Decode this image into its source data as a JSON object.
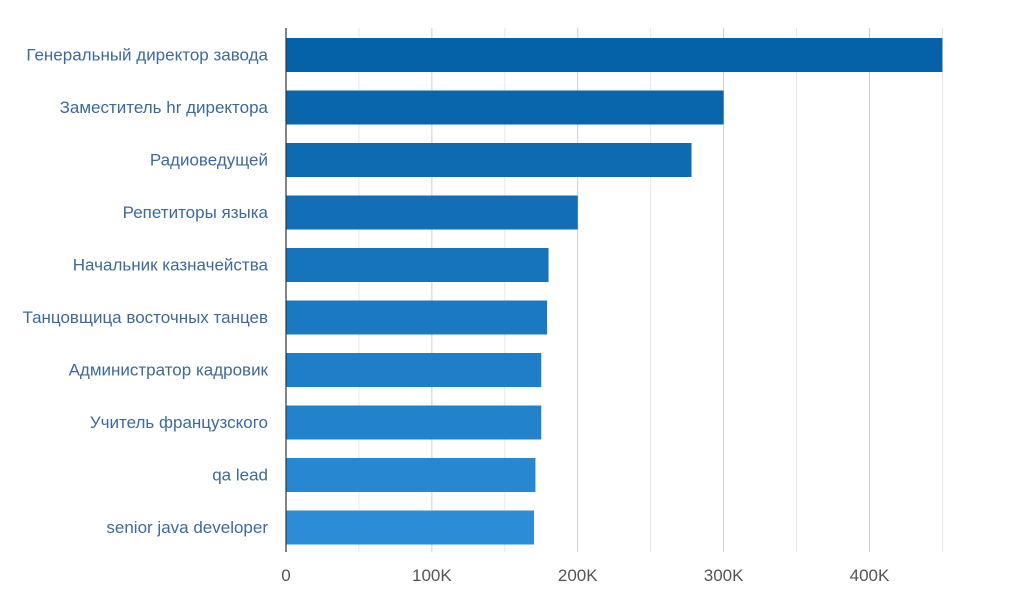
{
  "chart_data": {
    "type": "bar",
    "orientation": "horizontal",
    "categories": [
      "Генеральный директор завода",
      "Заместитель hr директора",
      "Радиоведущей",
      "Репетиторы языка",
      "Начальник казначейства",
      "Танцовщица восточных танцев",
      "Администратор кадровик",
      "Учитель французского",
      "qa lead",
      "senior java developer"
    ],
    "values": [
      450000,
      300000,
      278000,
      200000,
      180000,
      179000,
      175000,
      175000,
      171000,
      170000
    ],
    "xlim": [
      0,
      460000
    ],
    "xticks": [
      0,
      100000,
      200000,
      300000,
      400000
    ],
    "xtick_labels": [
      "0",
      "100K",
      "200K",
      "300K",
      "400K"
    ],
    "grid": "vertical",
    "title": "",
    "xlabel": "",
    "ylabel": "",
    "colors": {
      "bar_top": "#0561a8",
      "bar_bottom": "#2c8cd6",
      "label": "#3d6a99",
      "tick": "#555555",
      "gridline_major": "#cccccc",
      "gridline_minor": "#e8e8e8",
      "axis": "#333333"
    }
  }
}
